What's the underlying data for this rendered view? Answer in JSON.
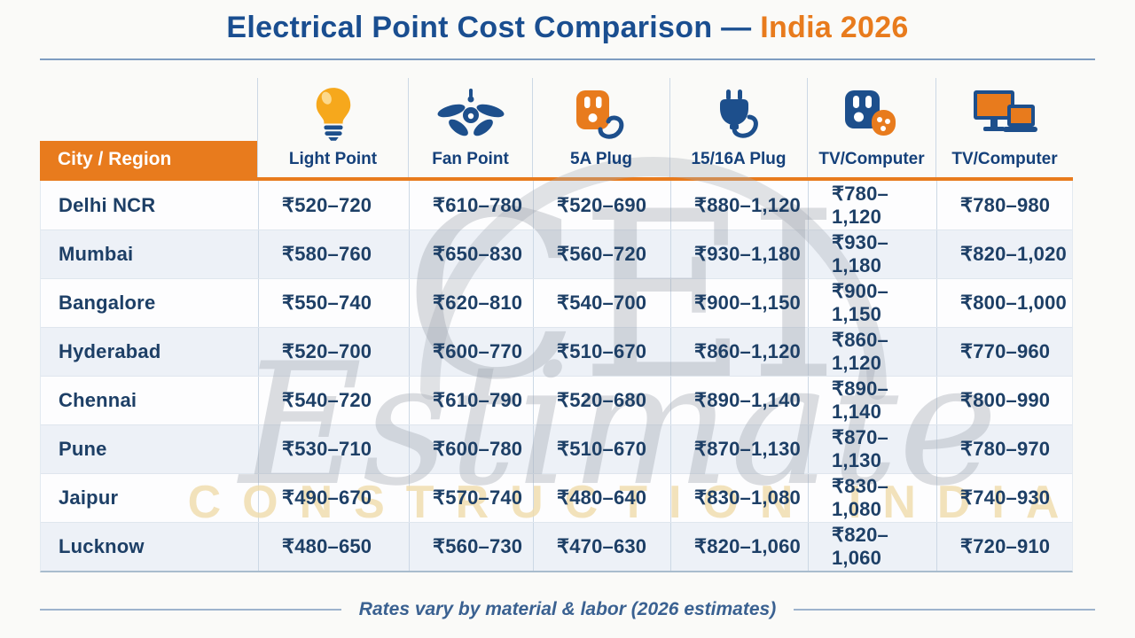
{
  "title": {
    "main": "Electrical Point Cost Comparison —",
    "accent": "India 2026"
  },
  "chart_data": {
    "type": "table",
    "title": "Electrical Point Cost Comparison — India 2026",
    "currency": "INR",
    "city_column_header": "City / Region",
    "columns": [
      {
        "label": "Light Point",
        "icon": "light-bulb-icon"
      },
      {
        "label": "Fan Point",
        "icon": "ceiling-fan-icon"
      },
      {
        "label": "5A Plug",
        "icon": "socket-5a-icon"
      },
      {
        "label": "15/16A Plug",
        "icon": "power-plug-icon"
      },
      {
        "label": "TV/Computer",
        "icon": "tv-socket-icon"
      },
      {
        "label": "TV/Computer",
        "icon": "tv-computer-monitors-icon"
      }
    ],
    "rows": [
      {
        "city": "Delhi NCR",
        "values": [
          "₹520–720",
          "₹610–780",
          "₹520–690",
          "₹880–1,120",
          "₹780–1,120",
          "₹780–980"
        ]
      },
      {
        "city": "Mumbai",
        "values": [
          "₹580–760",
          "₹650–830",
          "₹560–720",
          "₹930–1,180",
          "₹930–1,180",
          "₹820–1,020"
        ]
      },
      {
        "city": "Bangalore",
        "values": [
          "₹550–740",
          "₹620–810",
          "₹540–700",
          "₹900–1,150",
          "₹900–1,150",
          "₹800–1,000"
        ]
      },
      {
        "city": "Hyderabad",
        "values": [
          "₹520–700",
          "₹600–770",
          "₹510–670",
          "₹860–1,120",
          "₹860–1,120",
          "₹770–960"
        ]
      },
      {
        "city": "Chennai",
        "values": [
          "₹540–720",
          "₹610–790",
          "₹520–680",
          "₹890–1,140",
          "₹890–1,140",
          "₹800–990"
        ]
      },
      {
        "city": "Pune",
        "values": [
          "₹530–710",
          "₹600–780",
          "₹510–670",
          "₹870–1,130",
          "₹870–1,130",
          "₹780–970"
        ]
      },
      {
        "city": "Jaipur",
        "values": [
          "₹490–670",
          "₹570–740",
          "₹480–640",
          "₹830–1,080",
          "₹830–1,080",
          "₹740–930"
        ]
      },
      {
        "city": "Lucknow",
        "values": [
          "₹480–650",
          "₹560–730",
          "₹470–630",
          "₹820–1,060",
          "₹820–1,060",
          "₹720–910"
        ]
      }
    ],
    "note": "Rates vary by material & labor (2026 estimates)"
  },
  "footer": {
    "note": "Rates vary by material & labor (2026 estimates)"
  },
  "watermark": {
    "monogram": "CEI",
    "script_text": "Estimate",
    "caption": "CONSTRUCTION INDIA"
  },
  "colors": {
    "accent_orange": "#e87b1d",
    "title_blue": "#1a4e90",
    "icon_blue": "#1d4f8c",
    "value_navy": "#1d3f66",
    "column_label_navy": "#14407a",
    "row_shade": "#edf1f7",
    "watermark_gray": "#a2a8b2",
    "watermark_gold": "#f0dcab"
  }
}
